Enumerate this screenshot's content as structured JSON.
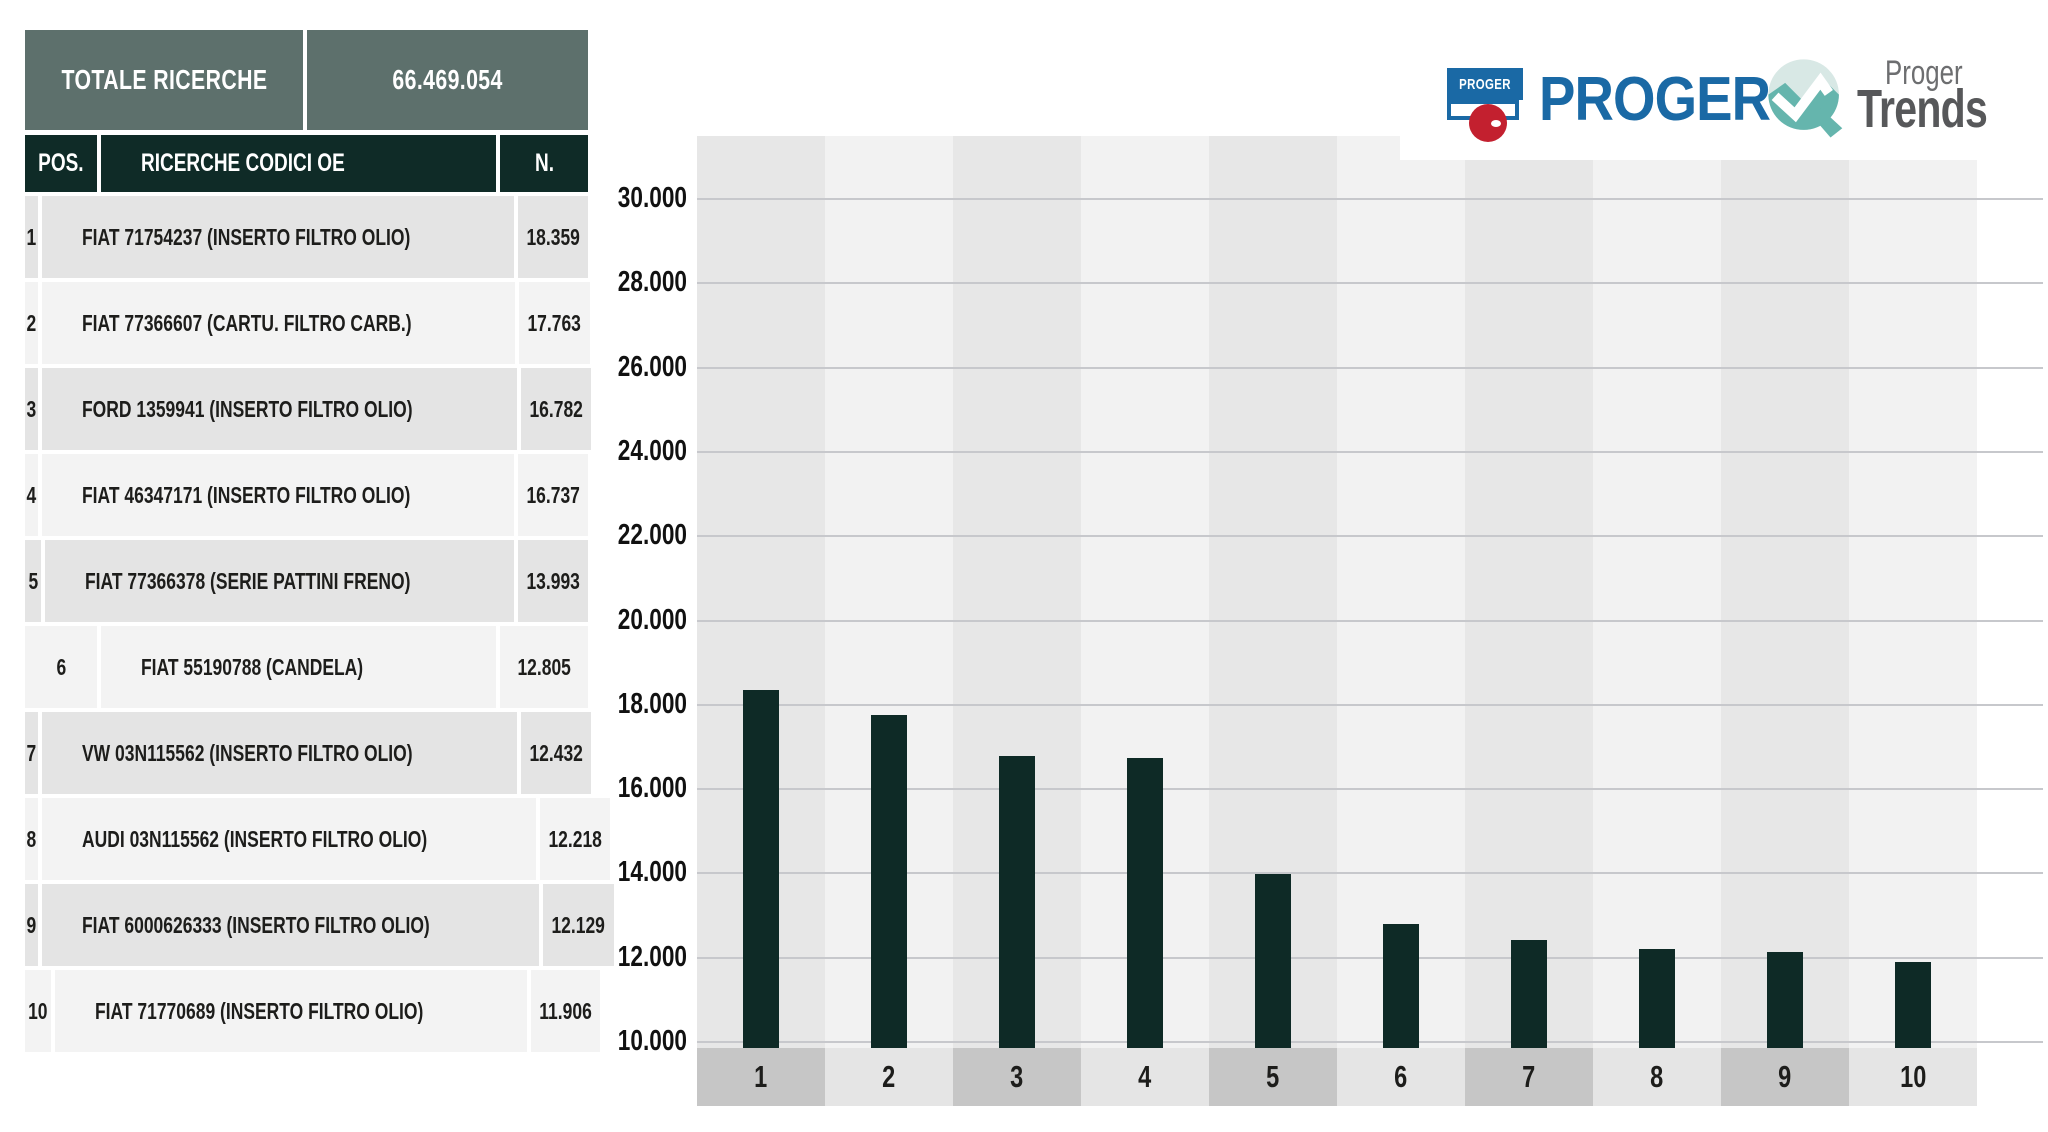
{
  "summary": {
    "label": "TOTALE RICERCHE",
    "value": "66.469.054"
  },
  "table": {
    "headers": {
      "pos": "POS.",
      "code": "RICERCHE CODICI OE",
      "count": "N."
    },
    "rows": [
      {
        "pos": "1",
        "code": "FIAT 71754237 (INSERTO FILTRO OLIO)",
        "count": "18.359"
      },
      {
        "pos": "2",
        "code": "FIAT 77366607 (CARTU. FILTRO CARB.)",
        "count": "17.763"
      },
      {
        "pos": "3",
        "code": "FORD 1359941 (INSERTO FILTRO OLIO)",
        "count": "16.782"
      },
      {
        "pos": "4",
        "code": "FIAT 46347171 (INSERTO FILTRO OLIO)",
        "count": "16.737"
      },
      {
        "pos": "5",
        "code": "FIAT 77366378 (SERIE PATTINI FRENO)",
        "count": "13.993"
      },
      {
        "pos": "6",
        "code": "FIAT 55190788 (CANDELA)",
        "count": "12.805"
      },
      {
        "pos": "7",
        "code": "VW 03N115562 (INSERTO FILTRO OLIO)",
        "count": "12.432"
      },
      {
        "pos": "8",
        "code": "AUDI 03N115562 (INSERTO FILTRO OLIO)",
        "count": "12.218"
      },
      {
        "pos": "9",
        "code": "FIAT 6000626333 (INSERTO FILTRO OLIO)",
        "count": "12.129"
      },
      {
        "pos": "10",
        "code": "FIAT 71770689 (INSERTO FILTRO OLIO)",
        "count": "11.906"
      }
    ]
  },
  "logos": {
    "proger_flag_text": "PROGER",
    "proger_wordmark": "PROGER",
    "trends_top": "Proger",
    "trends_bottom": "Trends"
  },
  "chart_data": {
    "type": "bar",
    "title": "",
    "xlabel": "",
    "ylabel": "",
    "categories": [
      "1",
      "2",
      "3",
      "4",
      "5",
      "6",
      "7",
      "8",
      "9",
      "10"
    ],
    "values": [
      18359,
      17763,
      16782,
      16737,
      13993,
      12805,
      12432,
      12218,
      12129,
      11906
    ],
    "value_labels": [
      "18.359",
      "17.763",
      "16.782",
      "16.737",
      "13.993",
      "12.805",
      "12.432",
      "12.218",
      "12.129",
      "11.906"
    ],
    "ylim": [
      10000,
      31500
    ],
    "yticks": [
      {
        "value": 30000,
        "label": "30.000"
      },
      {
        "value": 28000,
        "label": "28.000"
      },
      {
        "value": 26000,
        "label": "26.000"
      },
      {
        "value": 24000,
        "label": "24.000"
      },
      {
        "value": 22000,
        "label": "22.000"
      },
      {
        "value": 20000,
        "label": "20.000"
      },
      {
        "value": 18000,
        "label": "18.000"
      },
      {
        "value": 16000,
        "label": "16.000"
      },
      {
        "value": 14000,
        "label": "14.000"
      },
      {
        "value": 12000,
        "label": "12.000"
      },
      {
        "value": 10000,
        "label": "10.000"
      }
    ],
    "grid": true,
    "legend_position": "none",
    "bar_color": "#0e2a26",
    "plot_stripe_colors": [
      "#e7e7e7",
      "#f2f2f2"
    ],
    "axis_strip_colors": [
      "#c6c6c6",
      "#e5e5e5"
    ]
  },
  "colors": {
    "header_green": "#5d706c",
    "dark_green": "#0f2b27",
    "proger_blue": "#1a69a5",
    "proger_red": "#c3202f",
    "trends_teal": "#65b5ad",
    "trends_teal_light": "#d8e8e5",
    "gridline": "#c7c8cc"
  }
}
